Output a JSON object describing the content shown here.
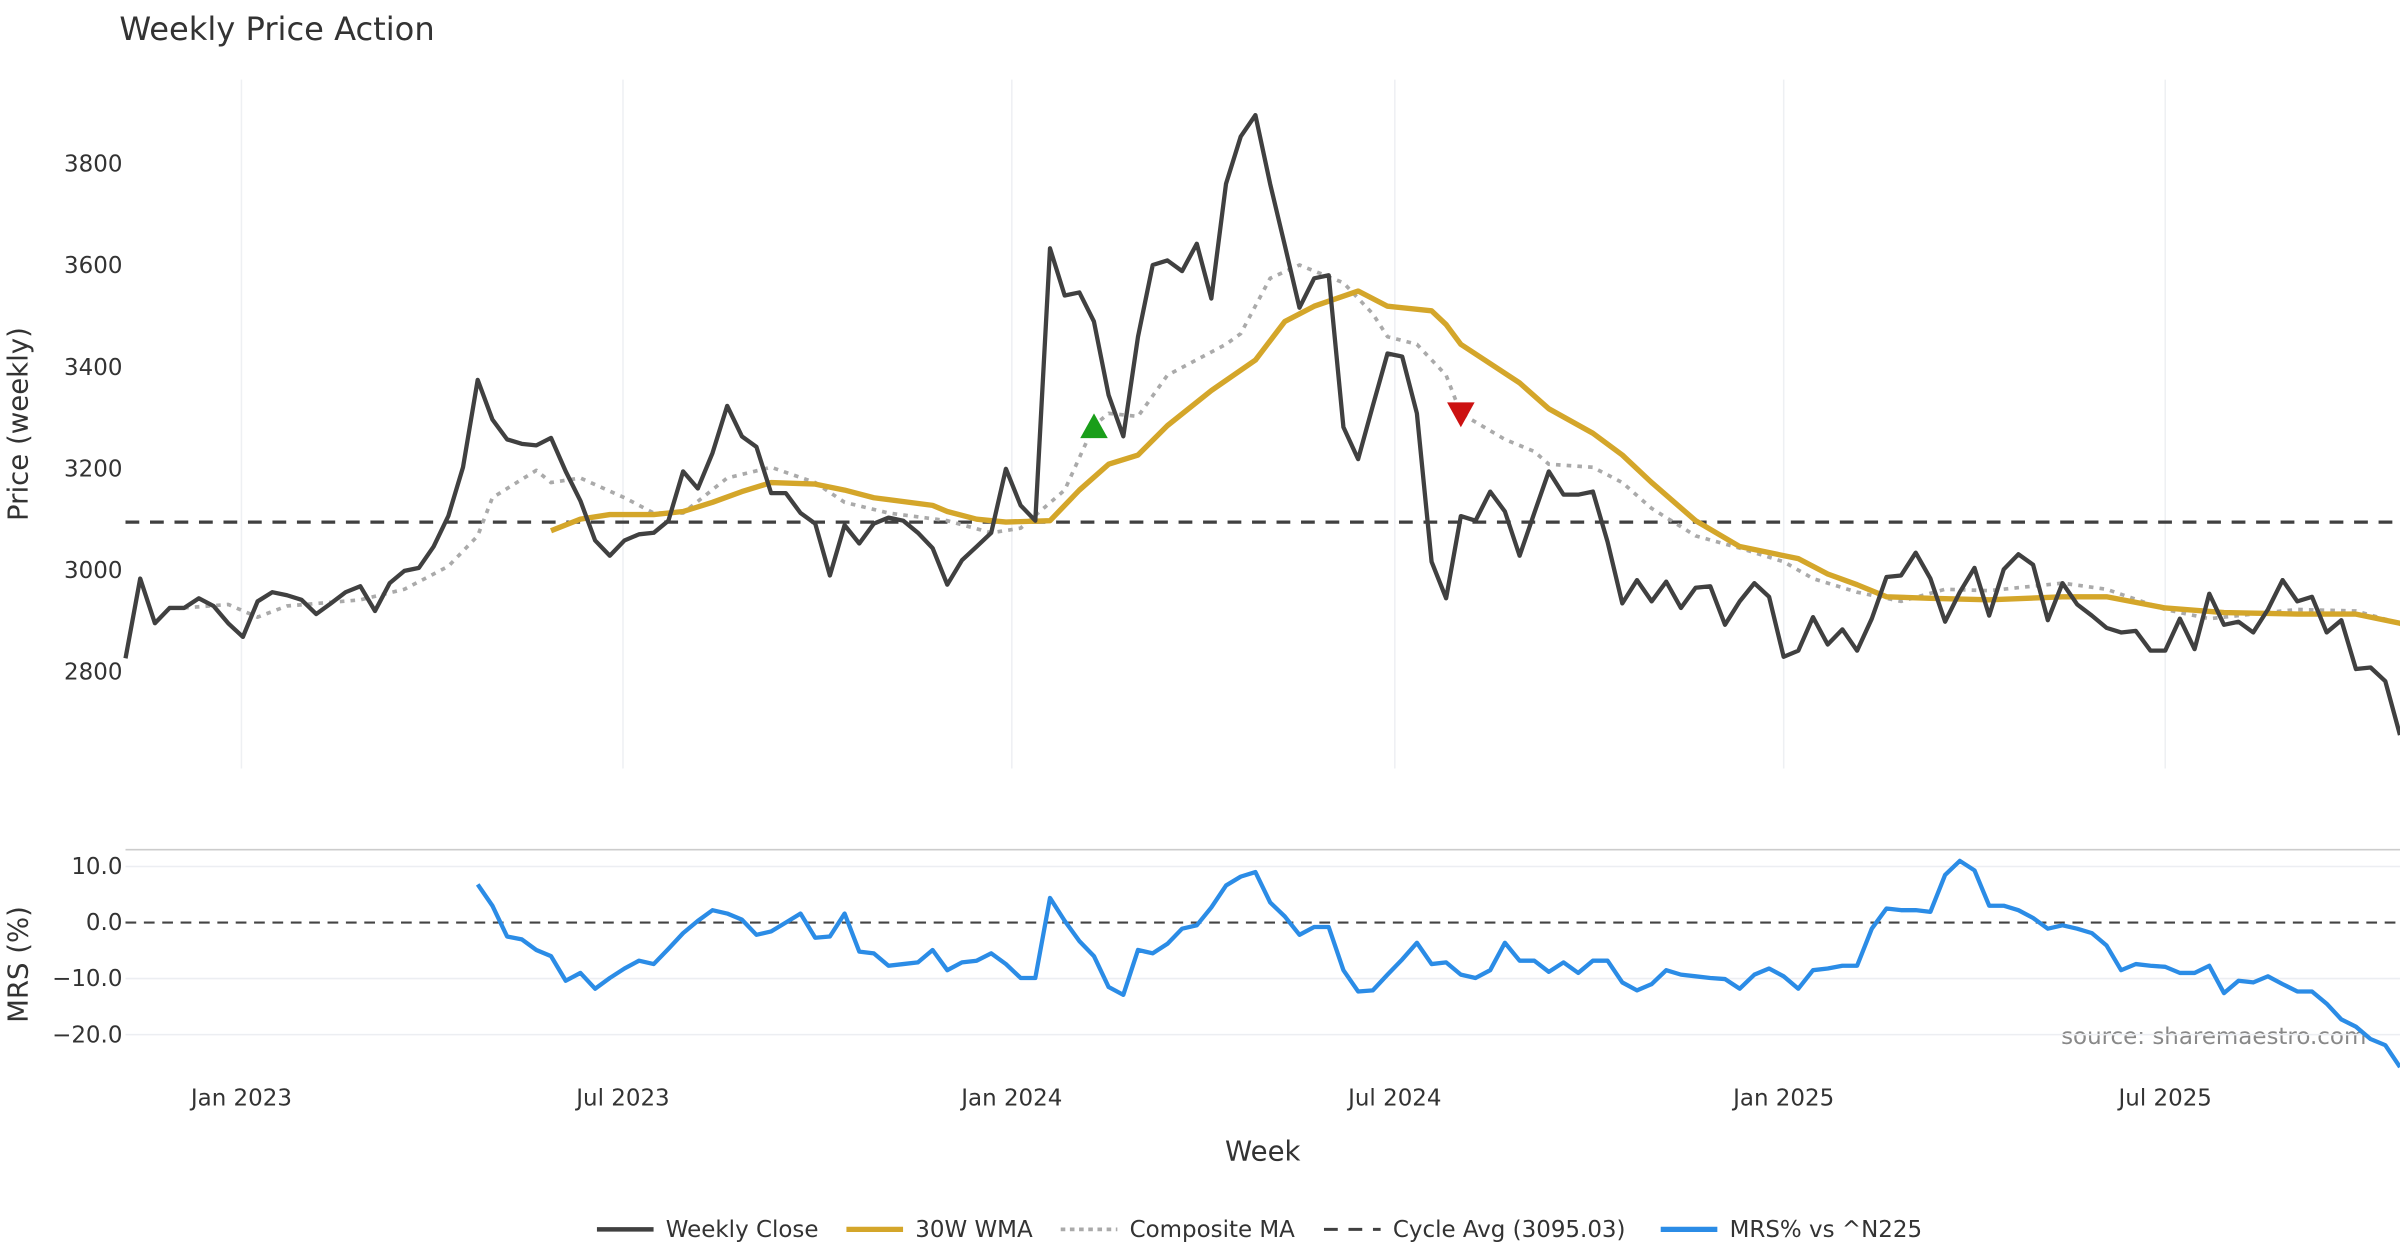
{
  "chart_data": [
    {
      "type": "line",
      "title": "Weekly Price Action",
      "ylabel": "Price (weekly)",
      "ylim": [
        2610,
        3966
      ],
      "y_ticks": [
        2800,
        3000,
        3200,
        3400,
        3600,
        3800
      ],
      "grid": true,
      "series": [
        {
          "name": "Weekly Close",
          "color": "#404040",
          "style": "solid",
          "values": [
            2827,
            2984,
            2896,
            2926,
            2926,
            2945,
            2930,
            2896,
            2869,
            2939,
            2957,
            2951,
            2942,
            2914,
            2935,
            2957,
            2969,
            2920,
            2975,
            2999,
            3005,
            3047,
            3107,
            3203,
            3375,
            3297,
            3258,
            3249,
            3246,
            3261,
            3195,
            3137,
            3059,
            3029,
            3059,
            3071,
            3074,
            3098,
            3195,
            3161,
            3231,
            3324,
            3264,
            3243,
            3152,
            3152,
            3113,
            3092,
            2990,
            3089,
            3053,
            3092,
            3104,
            3098,
            3074,
            3044,
            2972,
            3020,
            3047,
            3074,
            3200,
            3128,
            3098,
            3634,
            3541,
            3547,
            3490,
            3345,
            3264,
            3460,
            3601,
            3610,
            3589,
            3643,
            3535,
            3761,
            3854,
            3896,
            3761,
            3640,
            3517,
            3575,
            3581,
            3282,
            3219,
            3324,
            3427,
            3421,
            3309,
            3017,
            2945,
            3107,
            3098,
            3155,
            3116,
            3029,
            3113,
            3195,
            3149,
            3149,
            3155,
            3056,
            2935,
            2981,
            2939,
            2978,
            2926,
            2966,
            2969,
            2893,
            2939,
            2975,
            2948,
            2830,
            2842,
            2908,
            2854,
            2884,
            2842,
            2905,
            2987,
            2990,
            3035,
            2984,
            2899,
            2957,
            3005,
            2911,
            3002,
            3032,
            3011,
            2902,
            2975,
            2933,
            2911,
            2887,
            2878,
            2881,
            2842,
            2842,
            2905,
            2845,
            2954,
            2893,
            2899,
            2878,
            2923,
            2981,
            2939,
            2948,
            2878,
            2902,
            2806,
            2809,
            2782,
            2676
          ]
        },
        {
          "name": "30W WMA",
          "color": "#d4a62a",
          "style": "solid",
          "points": [
            [
              29,
              3078
            ],
            [
              31,
              3101
            ],
            [
              33,
              3110
            ],
            [
              36,
              3110
            ],
            [
              38,
              3116
            ],
            [
              40,
              3134
            ],
            [
              42,
              3155
            ],
            [
              44,
              3173
            ],
            [
              47,
              3170
            ],
            [
              49,
              3158
            ],
            [
              51,
              3143
            ],
            [
              55,
              3128
            ],
            [
              56,
              3116
            ],
            [
              58,
              3101
            ],
            [
              60,
              3095
            ],
            [
              63,
              3098
            ],
            [
              65,
              3158
            ],
            [
              67,
              3209
            ],
            [
              69,
              3227
            ],
            [
              71,
              3285
            ],
            [
              74,
              3354
            ],
            [
              77,
              3414
            ],
            [
              79,
              3490
            ],
            [
              81,
              3520
            ],
            [
              84,
              3550
            ],
            [
              86,
              3520
            ],
            [
              89,
              3511
            ],
            [
              90,
              3484
            ],
            [
              91,
              3445
            ],
            [
              95,
              3369
            ],
            [
              97,
              3318
            ],
            [
              100,
              3270
            ],
            [
              102,
              3227
            ],
            [
              104,
              3173
            ],
            [
              107,
              3098
            ],
            [
              110,
              3047
            ],
            [
              114,
              3023
            ],
            [
              116,
              2993
            ],
            [
              118,
              2972
            ],
            [
              120,
              2948
            ],
            [
              123,
              2945
            ],
            [
              127,
              2942
            ],
            [
              132,
              2948
            ],
            [
              135,
              2948
            ],
            [
              139,
              2926
            ],
            [
              143,
              2917
            ],
            [
              148,
              2914
            ],
            [
              152,
              2914
            ],
            [
              155,
              2896
            ],
            [
              157,
              2872
            ]
          ]
        },
        {
          "name": "Composite MA",
          "color": "#aaaaaa",
          "style": "dotted",
          "points": [
            [
              4,
              2926
            ],
            [
              7,
              2933
            ],
            [
              9,
              2908
            ],
            [
              11,
              2930
            ],
            [
              16,
              2942
            ],
            [
              19,
              2963
            ],
            [
              22,
              3008
            ],
            [
              24,
              3068
            ],
            [
              25,
              3143
            ],
            [
              28,
              3197
            ],
            [
              29,
              3173
            ],
            [
              31,
              3182
            ],
            [
              34,
              3143
            ],
            [
              36,
              3113
            ],
            [
              38,
              3113
            ],
            [
              41,
              3182
            ],
            [
              44,
              3203
            ],
            [
              47,
              3173
            ],
            [
              49,
              3134
            ],
            [
              52,
              3113
            ],
            [
              56,
              3098
            ],
            [
              59,
              3074
            ],
            [
              61,
              3083
            ],
            [
              64,
              3158
            ],
            [
              66,
              3285
            ],
            [
              67,
              3309
            ],
            [
              69,
              3303
            ],
            [
              71,
              3384
            ],
            [
              75,
              3445
            ],
            [
              76,
              3466
            ],
            [
              78,
              3575
            ],
            [
              80,
              3601
            ],
            [
              83,
              3566
            ],
            [
              85,
              3505
            ],
            [
              86,
              3460
            ],
            [
              88,
              3445
            ],
            [
              90,
              3384
            ],
            [
              91,
              3309
            ],
            [
              94,
              3258
            ],
            [
              96,
              3234
            ],
            [
              97,
              3209
            ],
            [
              100,
              3203
            ],
            [
              102,
              3173
            ],
            [
              104,
              3122
            ],
            [
              107,
              3068
            ],
            [
              110,
              3044
            ],
            [
              113,
              3017
            ],
            [
              115,
              2984
            ],
            [
              118,
              2957
            ],
            [
              121,
              2939
            ],
            [
              124,
              2963
            ],
            [
              127,
              2960
            ],
            [
              132,
              2975
            ],
            [
              135,
              2963
            ],
            [
              139,
              2923
            ],
            [
              142,
              2905
            ],
            [
              148,
              2923
            ],
            [
              152,
              2920
            ],
            [
              155,
              2896
            ],
            [
              157,
              2839
            ]
          ]
        },
        {
          "name": "Cycle Avg (3095.03)",
          "color": "#404040",
          "style": "dashed",
          "value": 3095.03
        }
      ],
      "markers": [
        {
          "type": "buy",
          "shape": "triangle-up",
          "color": "#1a9e1a",
          "week": 66,
          "value": 3282
        },
        {
          "type": "sell",
          "shape": "triangle-down",
          "color": "#cc1111",
          "week": 91,
          "value": 3309
        }
      ]
    },
    {
      "type": "line",
      "ylabel": "MRS (%)",
      "xlabel": "Week",
      "ylim": [
        -25.8,
        13
      ],
      "y_ticks": [
        10,
        0,
        -10,
        -20
      ],
      "y_tick_labels": [
        "10.0",
        "0.0",
        "−10.0",
        "−20.0"
      ],
      "zero_line": "dashed",
      "series": [
        {
          "name": "MRS% vs ^N225",
          "color": "#2b8ce6",
          "style": "solid",
          "values": [
            6.8,
            3.0,
            -2.5,
            -3.0,
            -4.9,
            -6.0,
            -10.4,
            -9.0,
            -11.8,
            -9.9,
            -8.2,
            -6.8,
            -7.4,
            -4.7,
            -1.9,
            0.3,
            2.2,
            1.6,
            0.5,
            -2.2,
            -1.6,
            0,
            1.6,
            -2.7,
            -2.5,
            1.6,
            -5.2,
            -5.5,
            -7.7,
            -7.4,
            -7.1,
            -4.9,
            -8.5,
            -7.1,
            -6.8,
            -5.5,
            -7.4,
            -9.9,
            -9.9,
            4.4,
            0.3,
            -3.3,
            -6.0,
            -11.5,
            -12.9,
            -4.9,
            -5.5,
            -3.8,
            -1.1,
            -0.5,
            2.7,
            6.6,
            8.2,
            9.0,
            3.6,
            1.1,
            -2.2,
            -0.8,
            -0.8,
            -8.5,
            -12.3,
            -12.1,
            -9.3,
            -6.6,
            -3.6,
            -7.4,
            -7.1,
            -9.3,
            -9.9,
            -8.5,
            -3.6,
            -6.8,
            -6.8,
            -8.8,
            -7.1,
            -9.0,
            -6.8,
            -6.8,
            -10.7,
            -12.1,
            -11.0,
            -8.5,
            -9.3,
            -9.6,
            -9.9,
            -10.1,
            -11.8,
            -9.3,
            -8.2,
            -9.6,
            -11.8,
            -8.5,
            -8.2,
            -7.7,
            -7.7,
            -1.1,
            2.5,
            2.2,
            2.2,
            1.9,
            8.5,
            11.0,
            9.3,
            3.0,
            3.0,
            2.2,
            0.8,
            -1.1,
            -0.5,
            -1.1,
            -1.9,
            -4.1,
            -8.5,
            -7.4,
            -7.7,
            -7.9,
            -9.0,
            -9.0,
            -7.7,
            -12.6,
            -10.4,
            -10.7,
            -9.6,
            -11.0,
            -12.3,
            -12.3,
            -14.5,
            -17.3,
            -18.6,
            -20.8,
            -21.9,
            -25.8
          ]
        }
      ],
      "annotation": "source: sharemaestro.com"
    }
  ],
  "x_ticks": [
    {
      "label": "Jan 2023",
      "week": 7.9
    },
    {
      "label": "Jul 2023",
      "week": 33.9
    },
    {
      "label": "Jan 2024",
      "week": 60.4
    },
    {
      "label": "Jul 2024",
      "week": 86.5
    },
    {
      "label": "Jan 2025",
      "week": 113
    },
    {
      "label": "Jul 2025",
      "week": 139
    }
  ],
  "legend": {
    "placement": "bottom-center",
    "items": [
      "Weekly Close",
      "30W WMA",
      "Composite MA",
      "Cycle Avg (3095.03)",
      "MRS% vs ^N225"
    ]
  }
}
